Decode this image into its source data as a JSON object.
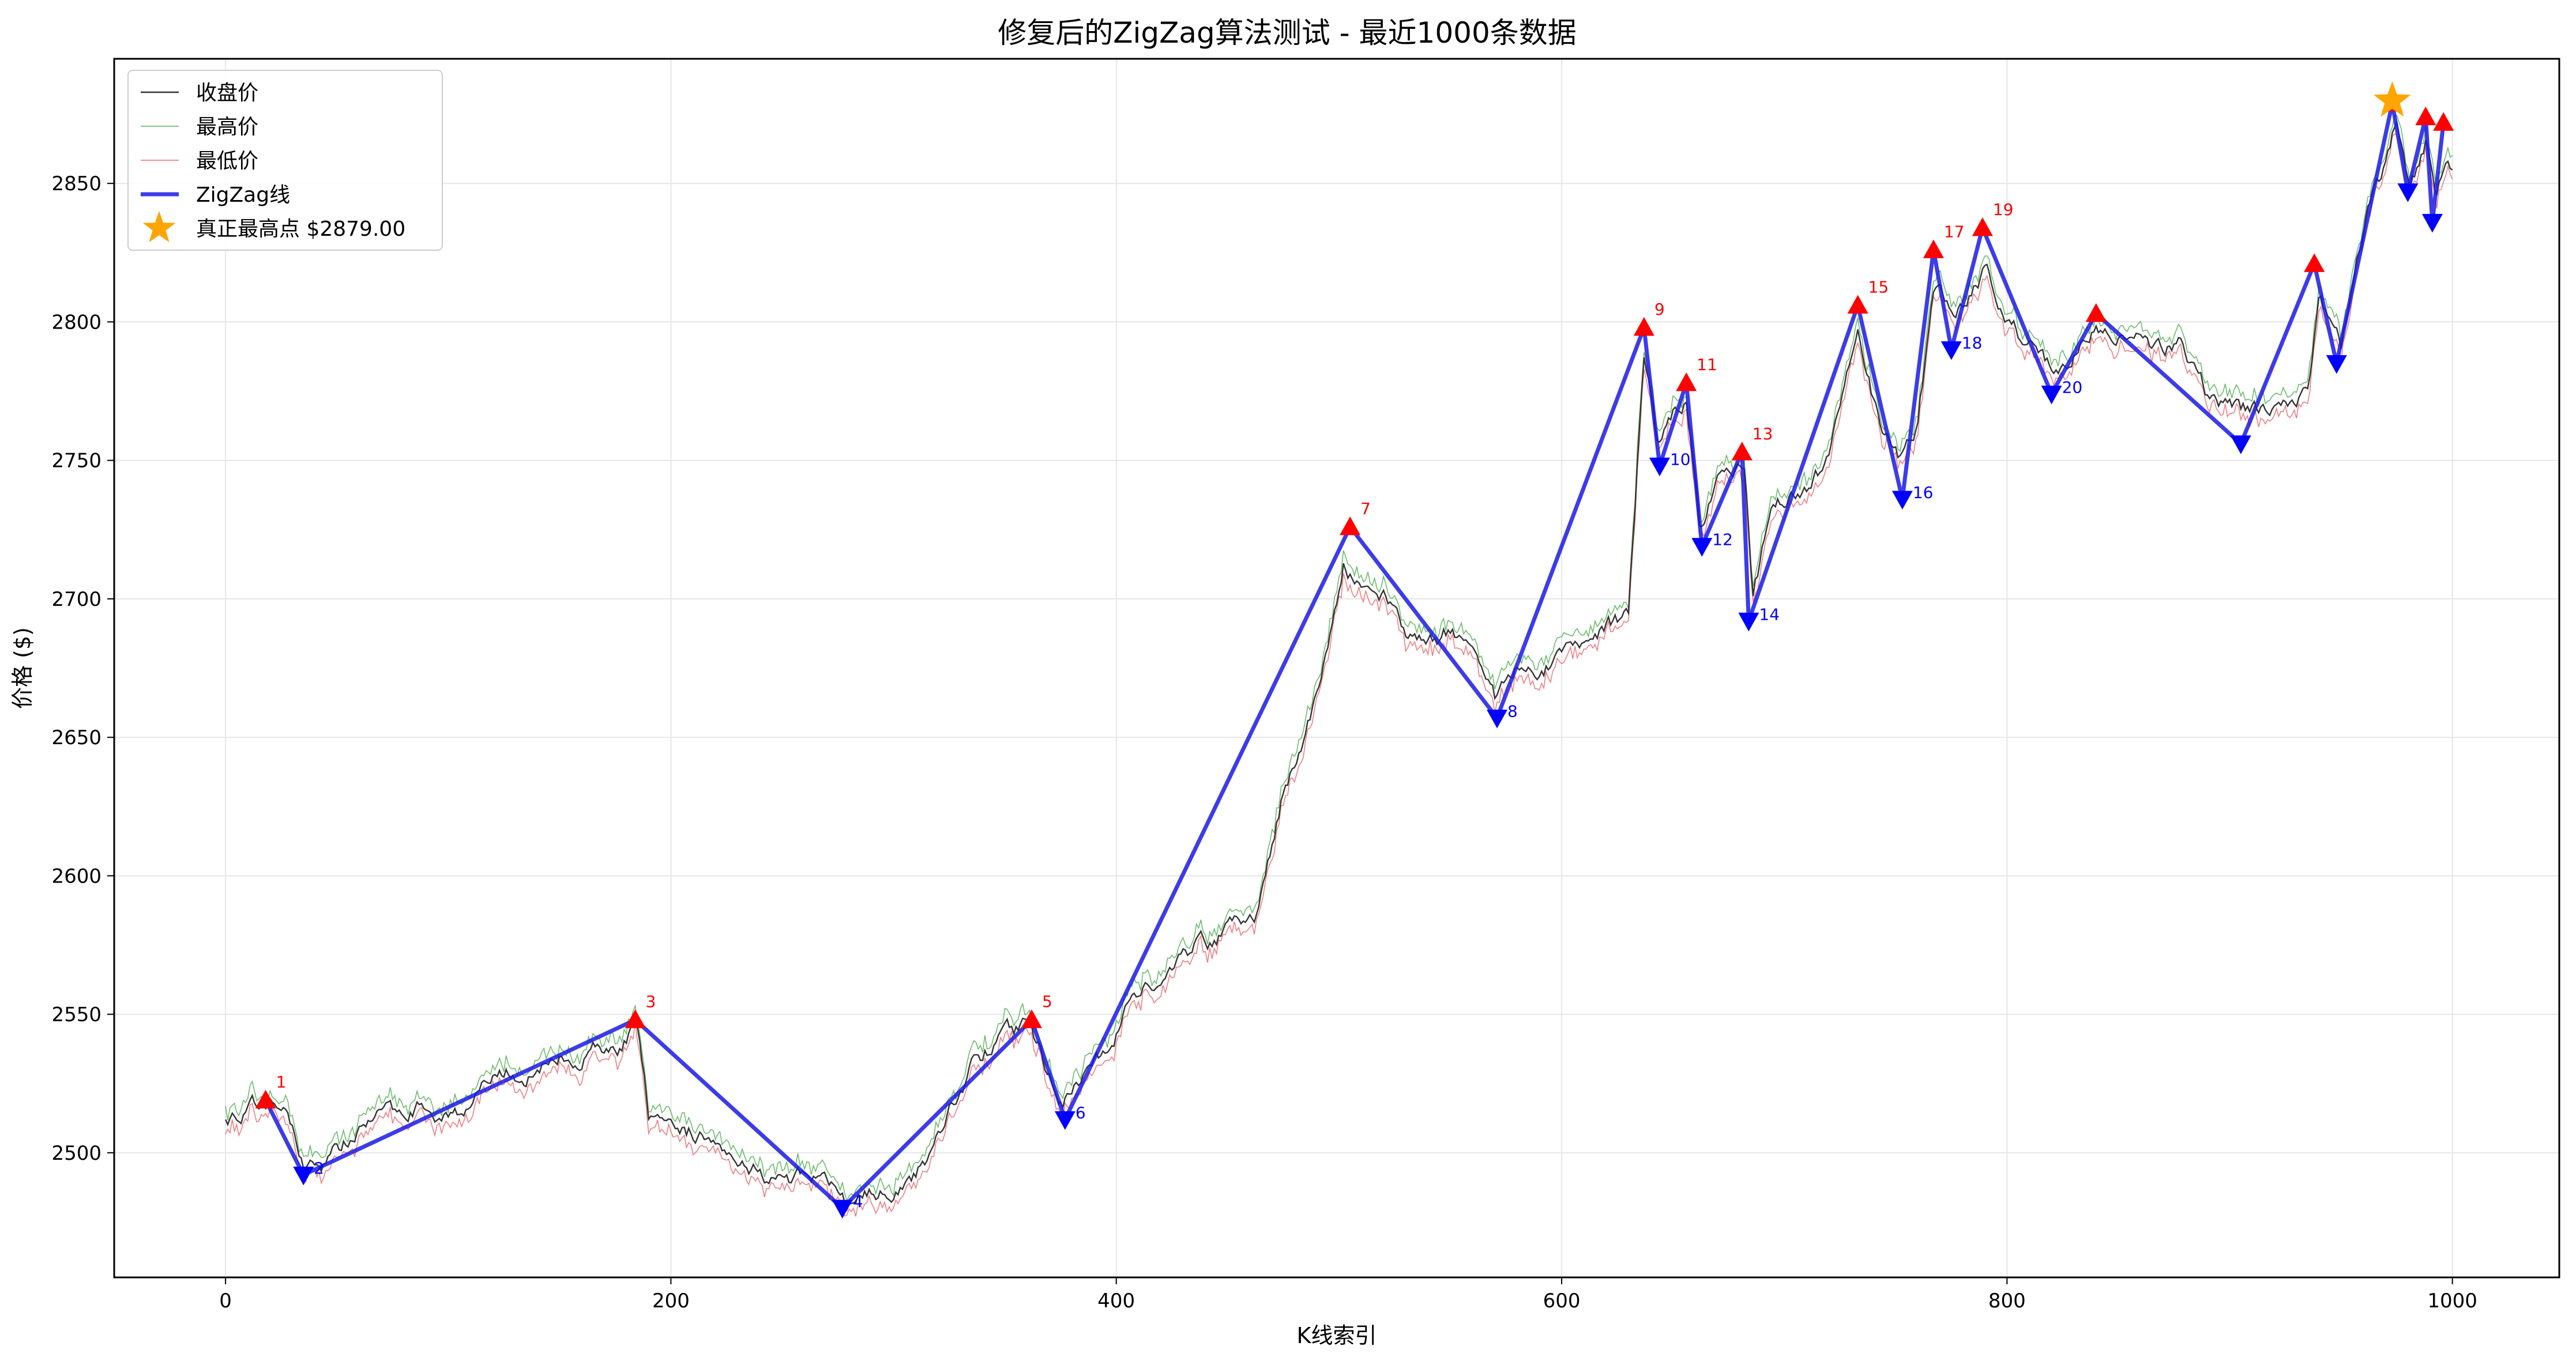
{
  "chart_data": {
    "type": "line",
    "title": "修复后的ZigZag算法测试 - 最近1000条数据",
    "xlabel": "K线索引",
    "ylabel": "价格 ($)",
    "xlim": [
      -50,
      1048
    ],
    "ylim": [
      2455,
      2895
    ],
    "xticks": [
      0,
      200,
      400,
      600,
      800,
      1000
    ],
    "yticks": [
      2500,
      2550,
      2600,
      2650,
      2700,
      2750,
      2800,
      2850
    ],
    "grid": true,
    "legend_position": "top-left",
    "legend": [
      {
        "key": "close",
        "label": "收盘价"
      },
      {
        "key": "high",
        "label": "最高价"
      },
      {
        "key": "low",
        "label": "最低价"
      },
      {
        "key": "zigzag",
        "label": "ZigZag线"
      },
      {
        "key": "peak",
        "label": "真正最高点 $2879.00"
      }
    ],
    "colors": {
      "close": "#333333",
      "high": "#2ca02c",
      "low": "#e8474f",
      "zigzag": "#1a1ae6",
      "high_marker": "#ff0000",
      "low_marker": "#0000ff",
      "peak": "#ffa500",
      "grid": "#e6e6e6"
    },
    "price_anchors": [
      [
        0,
        2514
      ],
      [
        10,
        2515
      ],
      [
        20,
        2518
      ],
      [
        28,
        2512
      ],
      [
        36,
        2496
      ],
      [
        45,
        2497
      ],
      [
        55,
        2505
      ],
      [
        65,
        2510
      ],
      [
        75,
        2514
      ],
      [
        85,
        2518
      ],
      [
        95,
        2515
      ],
      [
        105,
        2516
      ],
      [
        115,
        2522
      ],
      [
        125,
        2528
      ],
      [
        135,
        2530
      ],
      [
        145,
        2531
      ],
      [
        155,
        2535
      ],
      [
        165,
        2537
      ],
      [
        175,
        2536
      ],
      [
        184,
        2546
      ],
      [
        190,
        2512
      ],
      [
        198,
        2504
      ],
      [
        210,
        2507
      ],
      [
        222,
        2505
      ],
      [
        235,
        2498
      ],
      [
        248,
        2490
      ],
      [
        262,
        2491
      ],
      [
        272,
        2486
      ],
      [
        280,
        2482
      ],
      [
        292,
        2485
      ],
      [
        305,
        2490
      ],
      [
        315,
        2497
      ],
      [
        325,
        2517
      ],
      [
        335,
        2532
      ],
      [
        345,
        2539
      ],
      [
        355,
        2543
      ],
      [
        362,
        2547
      ],
      [
        368,
        2532
      ],
      [
        376,
        2518
      ],
      [
        385,
        2527
      ],
      [
        395,
        2536
      ],
      [
        405,
        2552
      ],
      [
        415,
        2562
      ],
      [
        425,
        2568
      ],
      [
        435,
        2574
      ],
      [
        445,
        2578
      ],
      [
        455,
        2582
      ],
      [
        462,
        2583
      ],
      [
        468,
        2605
      ],
      [
        475,
        2630
      ],
      [
        485,
        2655
      ],
      [
        495,
        2680
      ],
      [
        502,
        2712
      ],
      [
        510,
        2706
      ],
      [
        520,
        2700
      ],
      [
        530,
        2688
      ],
      [
        540,
        2682
      ],
      [
        550,
        2688
      ],
      [
        560,
        2684
      ],
      [
        570,
        2665
      ],
      [
        580,
        2678
      ],
      [
        590,
        2676
      ],
      [
        600,
        2680
      ],
      [
        610,
        2683
      ],
      [
        620,
        2690
      ],
      [
        630,
        2692
      ],
      [
        637,
        2787
      ],
      [
        643,
        2757
      ],
      [
        650,
        2766
      ],
      [
        656,
        2770
      ],
      [
        662,
        2728
      ],
      [
        670,
        2744
      ],
      [
        682,
        2749
      ],
      [
        686,
        2702
      ],
      [
        695,
        2735
      ],
      [
        710,
        2742
      ],
      [
        720,
        2748
      ],
      [
        733,
        2797
      ],
      [
        742,
        2765
      ],
      [
        752,
        2750
      ],
      [
        760,
        2760
      ],
      [
        767,
        2812
      ],
      [
        775,
        2803
      ],
      [
        785,
        2812
      ],
      [
        790,
        2820
      ],
      [
        800,
        2800
      ],
      [
        812,
        2788
      ],
      [
        821,
        2780
      ],
      [
        830,
        2788
      ],
      [
        840,
        2798
      ],
      [
        852,
        2795
      ],
      [
        865,
        2790
      ],
      [
        878,
        2794
      ],
      [
        890,
        2775
      ],
      [
        900,
        2770
      ],
      [
        906,
        2768
      ],
      [
        915,
        2768
      ],
      [
        925,
        2772
      ],
      [
        935,
        2774
      ],
      [
        940,
        2810
      ],
      [
        945,
        2800
      ],
      [
        950,
        2790
      ],
      [
        955,
        2815
      ],
      [
        962,
        2840
      ],
      [
        968,
        2852
      ],
      [
        975,
        2874
      ],
      [
        981,
        2850
      ],
      [
        988,
        2865
      ],
      [
        993,
        2842
      ],
      [
        998,
        2858
      ],
      [
        1000,
        2854
      ]
    ],
    "zigzag": [
      {
        "x": 18,
        "y": 2519,
        "type": "high",
        "label": "1"
      },
      {
        "x": 35,
        "y": 2492,
        "type": "low",
        "label": "2"
      },
      {
        "x": 184,
        "y": 2548,
        "type": "high",
        "label": "3"
      },
      {
        "x": 277,
        "y": 2480,
        "type": "low",
        "label": "4"
      },
      {
        "x": 362,
        "y": 2548,
        "type": "high",
        "label": "5"
      },
      {
        "x": 377,
        "y": 2512,
        "type": "low",
        "label": "6"
      },
      {
        "x": 505,
        "y": 2726,
        "type": "high",
        "label": "7"
      },
      {
        "x": 571,
        "y": 2657,
        "type": "low",
        "label": "8"
      },
      {
        "x": 637,
        "y": 2798,
        "type": "high",
        "label": "9"
      },
      {
        "x": 644,
        "y": 2748,
        "type": "low",
        "label": "10"
      },
      {
        "x": 656,
        "y": 2778,
        "type": "high",
        "label": "11"
      },
      {
        "x": 663,
        "y": 2719,
        "type": "low",
        "label": "12"
      },
      {
        "x": 681,
        "y": 2753,
        "type": "high",
        "label": "13"
      },
      {
        "x": 684,
        "y": 2692,
        "type": "low",
        "label": "14"
      },
      {
        "x": 733,
        "y": 2806,
        "type": "high",
        "label": "15"
      },
      {
        "x": 753,
        "y": 2736,
        "type": "low",
        "label": "16"
      },
      {
        "x": 767,
        "y": 2826,
        "type": "high",
        "label": "17"
      },
      {
        "x": 775,
        "y": 2790,
        "type": "low",
        "label": "18"
      },
      {
        "x": 789,
        "y": 2834,
        "type": "high",
        "label": "19"
      },
      {
        "x": 820,
        "y": 2774,
        "type": "low",
        "label": "20"
      },
      {
        "x": 840,
        "y": 2803,
        "type": "high",
        "label": ""
      },
      {
        "x": 905,
        "y": 2756,
        "type": "low",
        "label": ""
      },
      {
        "x": 938,
        "y": 2821,
        "type": "high",
        "label": ""
      },
      {
        "x": 948,
        "y": 2785,
        "type": "low",
        "label": ""
      },
      {
        "x": 973,
        "y": 2879,
        "type": "high",
        "label": ""
      },
      {
        "x": 980,
        "y": 2847,
        "type": "low",
        "label": ""
      },
      {
        "x": 988,
        "y": 2874,
        "type": "high",
        "label": ""
      },
      {
        "x": 991,
        "y": 2836,
        "type": "low",
        "label": ""
      },
      {
        "x": 996,
        "y": 2872,
        "type": "high",
        "label": ""
      }
    ],
    "true_peak": {
      "x": 973,
      "y": 2879,
      "label": "真正最高点 $2879.00"
    }
  }
}
